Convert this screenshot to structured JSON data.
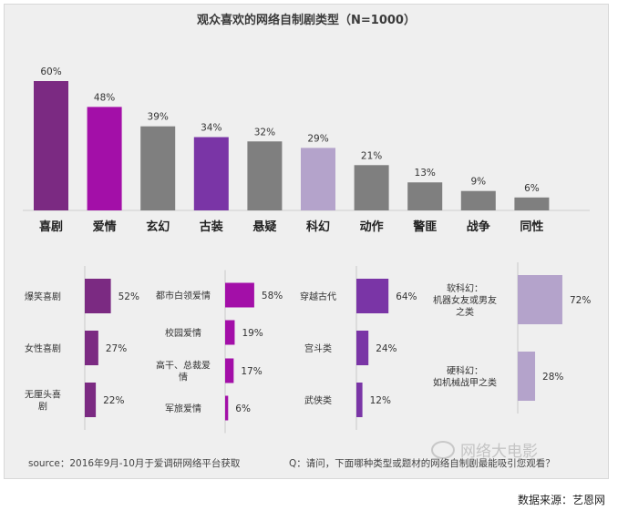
{
  "title": "观众喜欢的网络自制剧类型（N=1000）",
  "colors": {
    "dark_purple": "#7b2a82",
    "magenta": "#a30fa8",
    "gray": "#7f7f7f",
    "violet": "#7a35a6",
    "lavender": "#b4a3cb",
    "background": "#efefef"
  },
  "chart_data": [
    {
      "type": "bar",
      "categories": [
        "喜剧",
        "爱情",
        "玄幻",
        "古装",
        "悬疑",
        "科幻",
        "动作",
        "警匪",
        "战争",
        "同性"
      ],
      "values": [
        60,
        48,
        39,
        34,
        32,
        29,
        21,
        13,
        9,
        6
      ],
      "value_labels": [
        "60%",
        "48%",
        "39%",
        "34%",
        "32%",
        "29%",
        "21%",
        "13%",
        "9%",
        "6%"
      ],
      "bar_colors": [
        "#7b2a82",
        "#a30fa8",
        "#7f7f7f",
        "#7a35a6",
        "#7f7f7f",
        "#b4a3cb",
        "#7f7f7f",
        "#7f7f7f",
        "#7f7f7f",
        "#7f7f7f"
      ],
      "ylim": [
        0,
        60
      ]
    },
    {
      "type": "bar",
      "orientation": "horizontal",
      "categories": [
        "爆笑喜剧",
        "女性喜剧",
        "无厘头喜剧"
      ],
      "values": [
        52,
        27,
        22
      ],
      "value_labels": [
        "52%",
        "27%",
        "22%"
      ],
      "color": "#7b2a82",
      "xlim": [
        0,
        64
      ]
    },
    {
      "type": "bar",
      "orientation": "horizontal",
      "categories": [
        "都市白领爱情",
        "校园爱情",
        "高干、总裁爱情",
        "军旅爱情"
      ],
      "values": [
        58,
        19,
        17,
        6
      ],
      "value_labels": [
        "58%",
        "19%",
        "17%",
        "6%"
      ],
      "color": "#a30fa8",
      "xlim": [
        0,
        64
      ]
    },
    {
      "type": "bar",
      "orientation": "horizontal",
      "categories": [
        "穿越古代",
        "宫斗类",
        "武侠类"
      ],
      "values": [
        64,
        24,
        12
      ],
      "value_labels": [
        "64%",
        "24%",
        "12%"
      ],
      "color": "#7a35a6",
      "xlim": [
        0,
        64
      ]
    },
    {
      "type": "bar",
      "orientation": "horizontal",
      "categories": [
        "软科幻：机器女友或男友之类",
        "硬科幻：如机械战甲之类"
      ],
      "values": [
        72,
        28
      ],
      "value_labels": [
        "72%",
        "28%"
      ],
      "color": "#b4a3cb",
      "xlim": [
        0,
        72
      ]
    }
  ],
  "footer": {
    "source": "source：2016年9月-10月于爱调研网络平台获取",
    "question": "Q：请问，下面哪种类型或题材的网络自制剧最能吸引您观看？"
  },
  "watermark": "网络大电影",
  "data_credit": "数据来源：艺恩网"
}
